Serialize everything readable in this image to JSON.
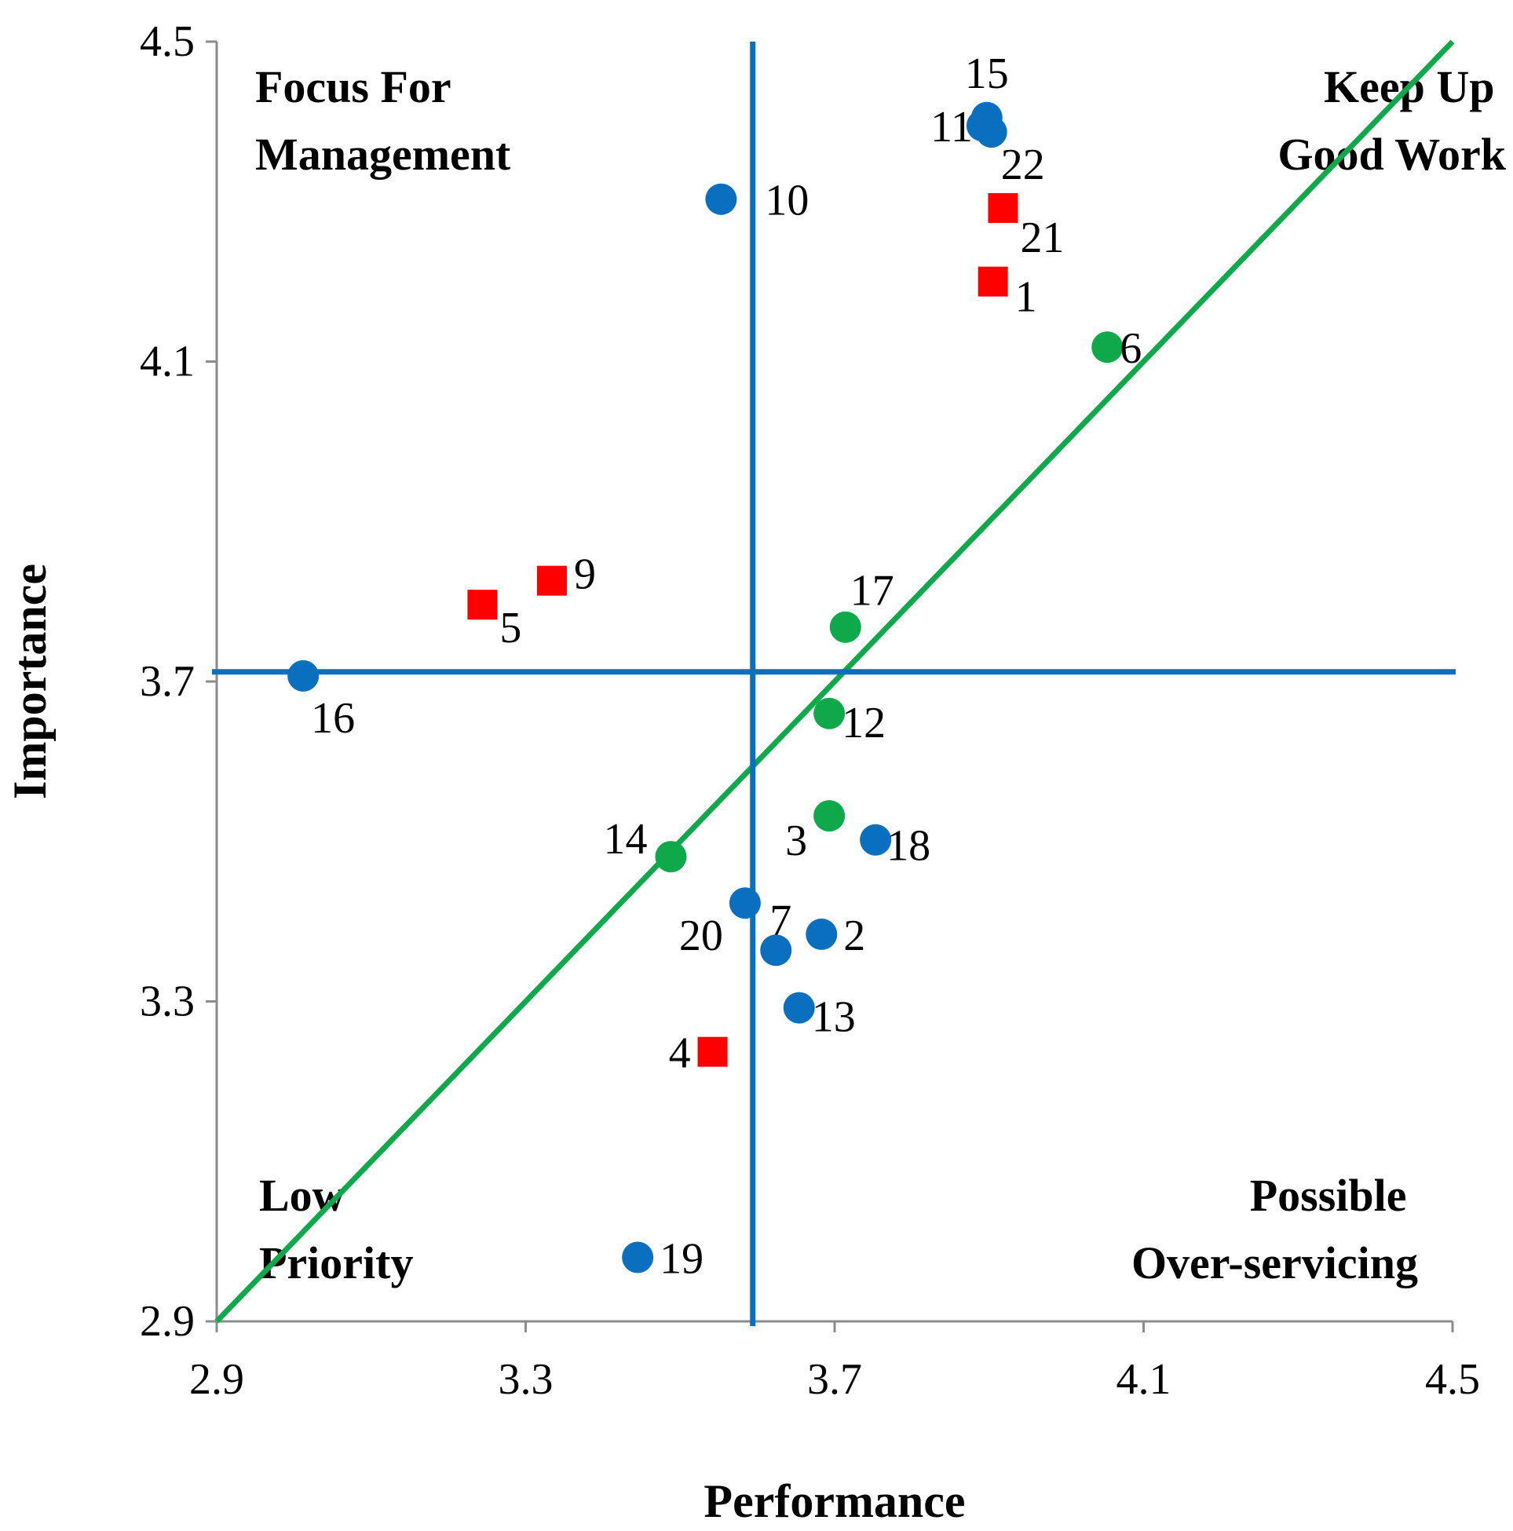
{
  "chart_data": {
    "type": "scatter",
    "title": "",
    "xlabel": "Performance",
    "ylabel": "Importance",
    "xlim": [
      2.9,
      4.5
    ],
    "ylim": [
      2.9,
      4.5
    ],
    "xticks": [
      "2.9",
      "3.3",
      "3.7",
      "4.1",
      "4.5"
    ],
    "yticks": [
      "2.9",
      "3.3",
      "3.7",
      "4.1",
      "4.5"
    ],
    "grid": false,
    "mean_lines": {
      "performance": 3.594,
      "importance": 3.712,
      "color": "#0b6fbf"
    },
    "diagonal": {
      "from": [
        2.9,
        2.9
      ],
      "to": [
        4.5,
        4.5
      ],
      "color": "#0fa84a"
    },
    "quadrant_labels": {
      "top_left": [
        "Focus For",
        "Management"
      ],
      "top_right": [
        "Keep Up",
        "Good Work"
      ],
      "bottom_left": [
        "Low",
        "Priority"
      ],
      "bottom_right": [
        "Possible",
        "Over-servicing"
      ]
    },
    "series_colors": {
      "blue": "#0b6fbf",
      "green": "#0fa84a",
      "red": "#ff0000"
    },
    "points": [
      {
        "label": "1",
        "x": 3.905,
        "y": 4.2,
        "series": "red",
        "shape": "square"
      },
      {
        "label": "2",
        "x": 3.683,
        "y": 3.384,
        "series": "blue",
        "shape": "circle"
      },
      {
        "label": "3",
        "x": 3.693,
        "y": 3.532,
        "series": "green",
        "shape": "circle"
      },
      {
        "label": "4",
        "x": 3.542,
        "y": 3.237,
        "series": "red",
        "shape": "square"
      },
      {
        "label": "5",
        "x": 3.244,
        "y": 3.796,
        "series": "red",
        "shape": "square"
      },
      {
        "label": "6",
        "x": 4.053,
        "y": 4.118,
        "series": "green",
        "shape": "circle"
      },
      {
        "label": "7",
        "x": 3.624,
        "y": 3.364,
        "series": "blue",
        "shape": "circle"
      },
      {
        "label": "9",
        "x": 3.334,
        "y": 3.826,
        "series": "red",
        "shape": "square"
      },
      {
        "label": "10",
        "x": 3.553,
        "y": 4.303,
        "series": "blue",
        "shape": "circle"
      },
      {
        "label": "11",
        "x": 3.891,
        "y": 4.395,
        "series": "blue",
        "shape": "circle"
      },
      {
        "label": "12",
        "x": 3.693,
        "y": 3.66,
        "series": "green",
        "shape": "circle"
      },
      {
        "label": "13",
        "x": 3.654,
        "y": 3.292,
        "series": "blue",
        "shape": "circle"
      },
      {
        "label": "14",
        "x": 3.488,
        "y": 3.481,
        "series": "green",
        "shape": "circle"
      },
      {
        "label": "15",
        "x": 3.897,
        "y": 4.405,
        "series": "blue",
        "shape": "circle"
      },
      {
        "label": "16",
        "x": 3.012,
        "y": 3.707,
        "series": "blue",
        "shape": "circle"
      },
      {
        "label": "17",
        "x": 3.714,
        "y": 3.768,
        "series": "green",
        "shape": "circle"
      },
      {
        "label": "18",
        "x": 3.753,
        "y": 3.502,
        "series": "blue",
        "shape": "circle"
      },
      {
        "label": "19",
        "x": 3.445,
        "y": 2.98,
        "series": "blue",
        "shape": "circle"
      },
      {
        "label": "20",
        "x": 3.584,
        "y": 3.423,
        "series": "blue",
        "shape": "circle"
      },
      {
        "label": "21",
        "x": 3.918,
        "y": 4.292,
        "series": "red",
        "shape": "square"
      },
      {
        "label": "22",
        "x": 3.903,
        "y": 4.387,
        "series": "blue",
        "shape": "circle"
      }
    ]
  }
}
